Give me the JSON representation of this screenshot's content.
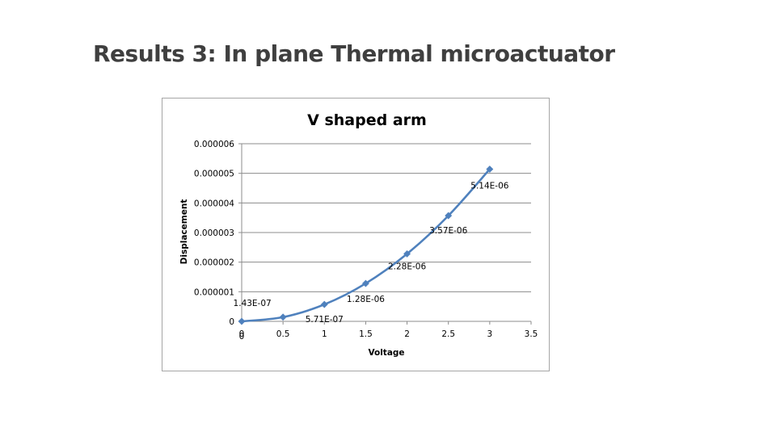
{
  "slide": {
    "title": "Results 3: In plane Thermal microactuator"
  },
  "chart_data": {
    "type": "line",
    "title": "V shaped arm",
    "xlabel": "Voltage",
    "ylabel": "Displacement",
    "xlim": [
      0,
      3.5
    ],
    "ylim": [
      0,
      6e-06
    ],
    "x_ticks": [
      "0",
      "0.5",
      "1",
      "1.5",
      "2",
      "2.5",
      "3",
      "3.5"
    ],
    "y_ticks": [
      "0",
      "0.000001",
      "0.000002",
      "0.000003",
      "0.000004",
      "0.000005",
      "0.000006"
    ],
    "grid": "horizontal",
    "smooth": true,
    "marker": "diamond",
    "color": "#4f81bd",
    "series": [
      {
        "x": [
          0,
          0.5,
          1,
          1.5,
          2,
          2.5,
          3
        ],
        "y": [
          0,
          1.43e-07,
          5.71e-07,
          1.28e-06,
          2.28e-06,
          3.57e-06,
          5.14e-06
        ],
        "labels": [
          "0",
          "1.43E-07",
          "5.71E-07",
          "1.28E-06",
          "2.28E-06",
          "3.57E-06",
          "5.14E-06"
        ]
      }
    ]
  }
}
